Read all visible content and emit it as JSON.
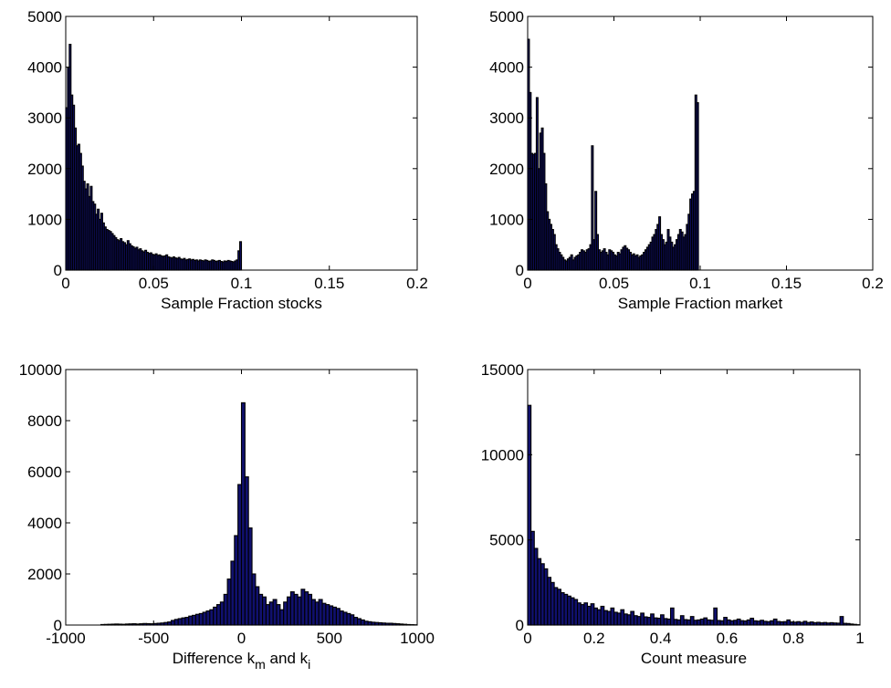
{
  "chart_data": [
    {
      "type": "bar",
      "xlabel": "Sample Fraction stocks",
      "xlim": [
        0,
        0.2
      ],
      "ylim": [
        0,
        5000
      ],
      "xticks": [
        0,
        0.05,
        0.1,
        0.15,
        0.2
      ],
      "xtick_labels": [
        "0",
        "0.05",
        "0.1",
        "0.15",
        "0.2"
      ],
      "yticks": [
        0,
        1000,
        2000,
        3000,
        4000,
        5000
      ],
      "ytick_labels": [
        "0",
        "1000",
        "2000",
        "3000",
        "4000",
        "5000"
      ],
      "bin_start": 0,
      "bin_width": 0.001,
      "values": [
        3200,
        4000,
        4450,
        3450,
        3250,
        2800,
        2450,
        2480,
        2300,
        2050,
        1750,
        1600,
        1700,
        1450,
        1650,
        1350,
        1300,
        1100,
        1200,
        1000,
        1120,
        930,
        850,
        800,
        780,
        760,
        720,
        680,
        640,
        600,
        580,
        620,
        560,
        540,
        500,
        580,
        520,
        480,
        460,
        430,
        450,
        400,
        420,
        380,
        360,
        390,
        350,
        330,
        340,
        310,
        300,
        320,
        290,
        300,
        280,
        270,
        280,
        300,
        260,
        250,
        240,
        260,
        240,
        230,
        250,
        220,
        210,
        230,
        200,
        210,
        220,
        200,
        210,
        190,
        200,
        180,
        200,
        190,
        180,
        200,
        190,
        170,
        180,
        200,
        190,
        170,
        180,
        190,
        170,
        160,
        180,
        170,
        190,
        180,
        170,
        160,
        180,
        200,
        380,
        560
      ]
    },
    {
      "type": "bar",
      "xlabel": "Sample Fraction market",
      "xlim": [
        0,
        0.2
      ],
      "ylim": [
        0,
        5000
      ],
      "xticks": [
        0,
        0.05,
        0.1,
        0.15,
        0.2
      ],
      "xtick_labels": [
        "0",
        "0.05",
        "0.1",
        "0.15",
        "0.2"
      ],
      "yticks": [
        0,
        1000,
        2000,
        3000,
        4000,
        5000
      ],
      "ytick_labels": [
        "0",
        "1000",
        "2000",
        "3000",
        "4000",
        "5000"
      ],
      "bin_start": 0,
      "bin_width": 0.001,
      "values": [
        4550,
        3500,
        2300,
        2280,
        2300,
        3400,
        2000,
        2700,
        2800,
        2300,
        1700,
        1150,
        1000,
        900,
        800,
        700,
        500,
        420,
        350,
        300,
        250,
        200,
        180,
        220,
        250,
        300,
        200,
        250,
        280,
        300,
        350,
        400,
        380,
        350,
        400,
        420,
        500,
        2450,
        600,
        1550,
        700,
        400,
        350,
        380,
        420,
        350,
        300,
        400,
        380,
        350,
        300,
        280,
        350,
        320,
        400,
        450,
        480,
        430,
        400,
        350,
        300,
        320,
        280,
        300,
        250,
        280,
        300,
        350,
        400,
        450,
        500,
        550,
        650,
        700,
        800,
        900,
        1050,
        700,
        600,
        500,
        550,
        800,
        650,
        550,
        450,
        500,
        600,
        700,
        800,
        750,
        650,
        700,
        900,
        1100,
        1400,
        1500,
        1550,
        3450,
        3300
      ]
    },
    {
      "type": "bar",
      "xlabel": "Difference k",
      "xlabel_sub1": "m",
      "xlabel_mid": " and k",
      "xlabel_sub2": "i",
      "xlim": [
        -1000,
        1000
      ],
      "ylim": [
        0,
        10000
      ],
      "xticks": [
        -1000,
        -500,
        0,
        500,
        1000
      ],
      "xtick_labels": [
        "-1000",
        "-500",
        "0",
        "500",
        "1000"
      ],
      "yticks": [
        0,
        2000,
        4000,
        6000,
        8000,
        10000
      ],
      "ytick_labels": [
        "0",
        "2000",
        "4000",
        "6000",
        "8000",
        "10000"
      ],
      "bin_start": -800,
      "bin_width": 20,
      "values": [
        20,
        25,
        30,
        35,
        40,
        35,
        30,
        40,
        45,
        50,
        40,
        50,
        60,
        55,
        50,
        60,
        70,
        80,
        100,
        120,
        180,
        220,
        250,
        280,
        300,
        350,
        380,
        420,
        450,
        500,
        550,
        600,
        700,
        800,
        900,
        1200,
        1800,
        2500,
        3500,
        5500,
        8700,
        5800,
        3800,
        2000,
        1500,
        1200,
        1100,
        800,
        900,
        1000,
        800,
        600,
        900,
        1100,
        1300,
        1200,
        1100,
        1400,
        1300,
        1200,
        1000,
        900,
        1000,
        850,
        800,
        750,
        700,
        650,
        550,
        500,
        450,
        400,
        300,
        250,
        200,
        150,
        130,
        110,
        100,
        90,
        80,
        70,
        70,
        60,
        50,
        40,
        30,
        20,
        15,
        10
      ]
    },
    {
      "type": "bar",
      "xlabel": "Count measure",
      "xlim": [
        0,
        1
      ],
      "ylim": [
        0,
        15000
      ],
      "xticks": [
        0,
        0.2,
        0.4,
        0.6,
        0.8,
        1
      ],
      "xtick_labels": [
        "0",
        "0.2",
        "0.4",
        "0.6",
        "0.8",
        "1"
      ],
      "yticks": [
        0,
        5000,
        10000,
        15000
      ],
      "ytick_labels": [
        "0",
        "5000",
        "10000",
        "15000"
      ],
      "bin_start": 0,
      "bin_width": 0.01,
      "values": [
        12900,
        5500,
        4500,
        3900,
        3600,
        3300,
        2800,
        2500,
        2200,
        2100,
        1900,
        1800,
        1700,
        1600,
        1500,
        1300,
        1200,
        1300,
        1100,
        1250,
        1000,
        900,
        1100,
        850,
        800,
        1000,
        750,
        700,
        900,
        650,
        600,
        800,
        550,
        500,
        700,
        480,
        450,
        650,
        420,
        400,
        600,
        380,
        350,
        1000,
        330,
        300,
        550,
        320,
        300,
        500,
        280,
        300,
        350,
        420,
        300,
        280,
        1000,
        270,
        250,
        450,
        300,
        250,
        280,
        350,
        260,
        240,
        300,
        400,
        250,
        230,
        280,
        220,
        200,
        250,
        350,
        210,
        190,
        200,
        300,
        180,
        170,
        200,
        160,
        220,
        150,
        180,
        140,
        160,
        130,
        150,
        120,
        140,
        120,
        110,
        500,
        100,
        90,
        60,
        40,
        20
      ]
    }
  ]
}
